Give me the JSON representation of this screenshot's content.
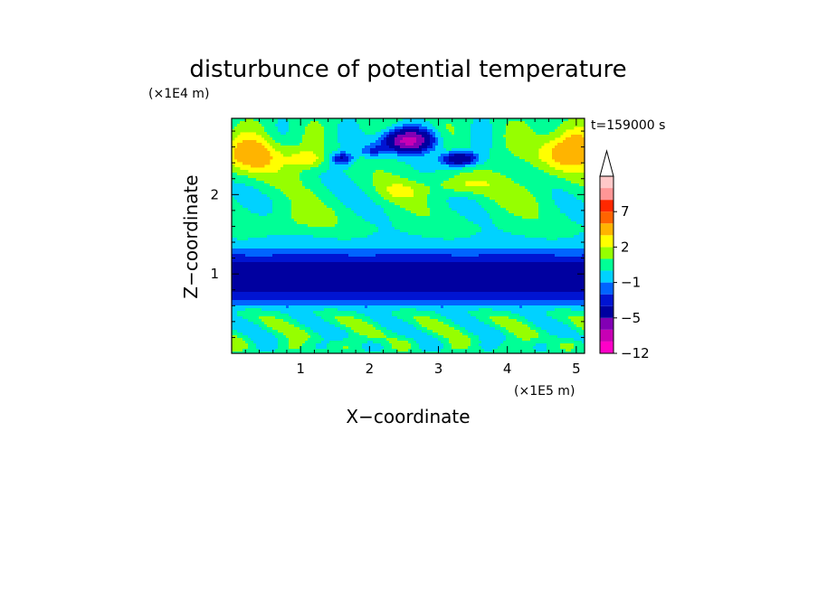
{
  "chart_data": {
    "type": "heatmap",
    "title": "disturbunce of potential temperature",
    "time_label": "t=159000 s",
    "xlabel": "X−coordinate",
    "ylabel": "Z−coordinate",
    "x_scale_label": "(×1E5 m)",
    "y_scale_label": "(×1E4 m)",
    "x_range": [
      0,
      5.12
    ],
    "y_range": [
      0,
      2.96
    ],
    "x_ticks": [
      1,
      2,
      3,
      4,
      5
    ],
    "y_ticks": [
      1,
      2
    ],
    "colorbar": {
      "levels": [
        -12,
        -9,
        -7,
        -5,
        -3,
        -2,
        -1,
        0,
        1,
        2,
        3,
        5,
        7,
        9,
        12
      ],
      "labels": [
        {
          "value": 7,
          "text": "7"
        },
        {
          "value": 2,
          "text": "2"
        },
        {
          "value": -1,
          "text": "−1"
        },
        {
          "value": -5,
          "text": "−5"
        },
        {
          "value": -12,
          "text": "−12"
        }
      ],
      "colors": [
        "#ff00c8",
        "#c800b4",
        "#8200b4",
        "#0000a0",
        "#0014d2",
        "#0064ff",
        "#00d2ff",
        "#00ff96",
        "#96ff00",
        "#ffff00",
        "#ffb400",
        "#ff6400",
        "#ff2800",
        "#ff9696",
        "#ffc8c8"
      ],
      "extend_top": true
    },
    "features": [
      {
        "type": "band",
        "z": [
          0.55,
          1.32
        ],
        "value": -3
      },
      {
        "type": "band",
        "z": [
          0.83,
          1.1
        ],
        "value": -5
      },
      {
        "type": "blob",
        "x": 2.55,
        "z": 2.68,
        "value": -7
      },
      {
        "type": "blob",
        "x": 2.55,
        "z": 2.68,
        "value": -9
      },
      {
        "type": "blob",
        "x": 0.3,
        "z": 2.5,
        "value": 5
      },
      {
        "type": "blob",
        "x": 4.8,
        "z": 2.55,
        "value": 5
      }
    ]
  }
}
